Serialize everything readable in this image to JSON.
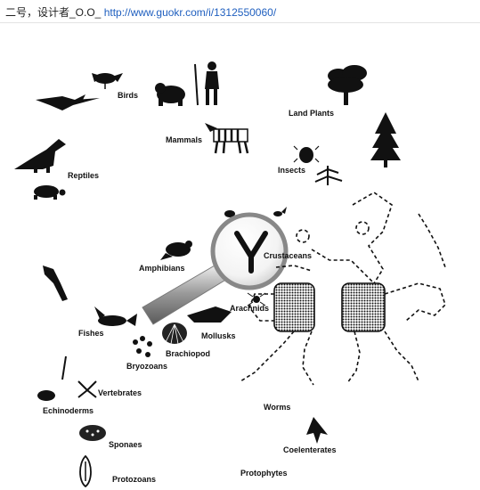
{
  "caption": {
    "prefix": "二号，设计者_O.O_",
    "link_text": "http://www.guokr.com/i/1312550060/"
  },
  "labels": {
    "birds": "Birds",
    "land_plants": "Land Plants",
    "mammals": "Mammals",
    "insects": "Insects",
    "reptiles": "Reptiles",
    "amphibians": "Amphibians",
    "crustaceans": "Crustaceans",
    "arachnids": "Arachnids",
    "fishes": "Fishes",
    "mollusks": "Mollusks",
    "brachiopod": "Brachiopod",
    "bryozoans": "Bryozoans",
    "vertebrates": "Vertebrates",
    "echinoderms": "Echinoderms",
    "worms": "Worms",
    "sponges": "Sponaes",
    "coelenterates": "Coelenterates",
    "protophytes": "Protophytes",
    "protozoans": "Protozoans"
  }
}
